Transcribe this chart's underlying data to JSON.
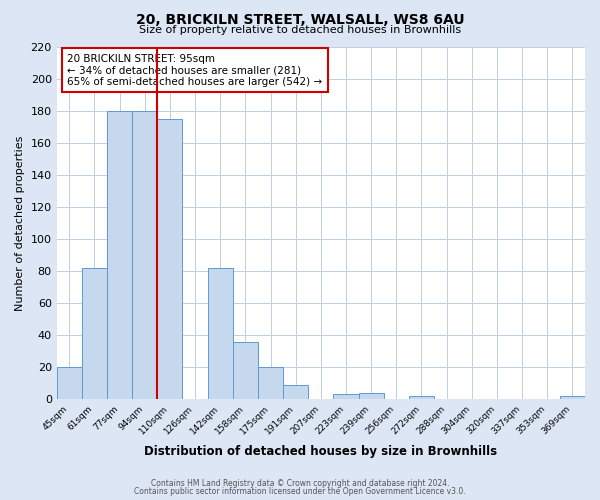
{
  "title": "20, BRICKILN STREET, WALSALL, WS8 6AU",
  "subtitle": "Size of property relative to detached houses in Brownhills",
  "xlabel": "Distribution of detached houses by size in Brownhills",
  "ylabel": "Number of detached properties",
  "bin_labels": [
    "45sqm",
    "61sqm",
    "77sqm",
    "94sqm",
    "110sqm",
    "126sqm",
    "142sqm",
    "158sqm",
    "175sqm",
    "191sqm",
    "207sqm",
    "223sqm",
    "239sqm",
    "256sqm",
    "272sqm",
    "288sqm",
    "304sqm",
    "320sqm",
    "337sqm",
    "353sqm",
    "369sqm"
  ],
  "bar_values": [
    20,
    82,
    180,
    180,
    175,
    0,
    82,
    36,
    20,
    9,
    0,
    3,
    4,
    0,
    2,
    0,
    0,
    0,
    0,
    0,
    2
  ],
  "bar_color": "#c5d8ed",
  "bar_edge_color": "#5b9bd5",
  "vline_color": "#cc0000",
  "ylim": [
    0,
    220
  ],
  "yticks": [
    0,
    20,
    40,
    60,
    80,
    100,
    120,
    140,
    160,
    180,
    200,
    220
  ],
  "annotation_title": "20 BRICKILN STREET: 95sqm",
  "annotation_line1": "← 34% of detached houses are smaller (281)",
  "annotation_line2": "65% of semi-detached houses are larger (542) →",
  "annotation_box_color": "#ffffff",
  "annotation_box_edge": "#cc0000",
  "footer_line1": "Contains HM Land Registry data © Crown copyright and database right 2024.",
  "footer_line2": "Contains public sector information licensed under the Open Government Licence v3.0.",
  "background_color": "#dce6f5",
  "plot_background": "#ffffff",
  "grid_color": "#c0cfe0"
}
